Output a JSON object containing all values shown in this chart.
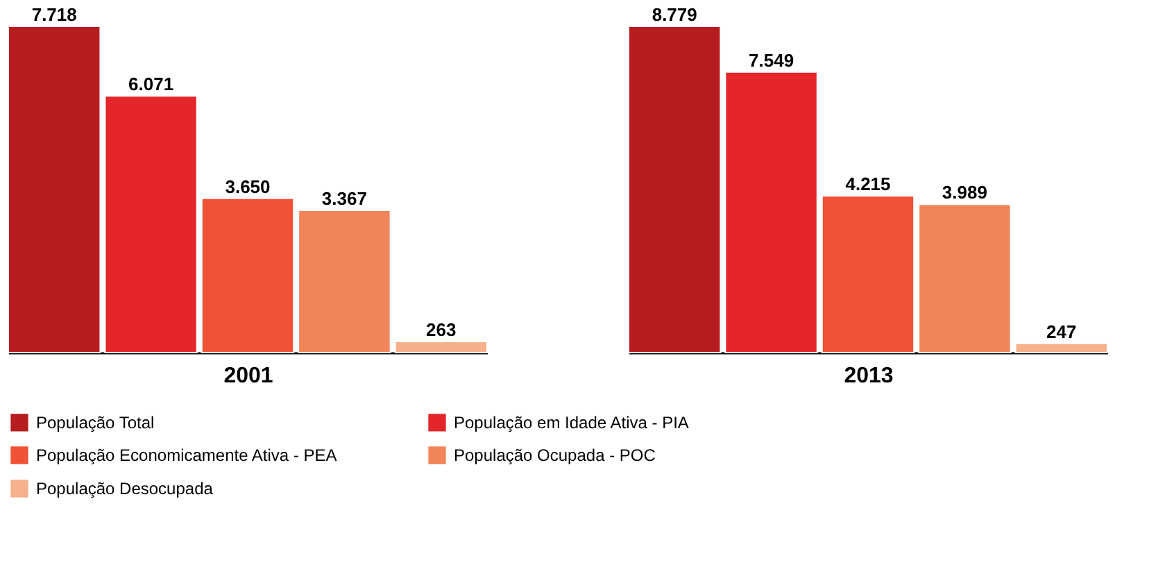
{
  "chart_data": [
    {
      "type": "bar",
      "xlabel": "2001",
      "categories": [
        null
      ],
      "legend": "bottom",
      "series": [
        {
          "name": "População Total",
          "color": "#b51d1f",
          "values": [
            7718
          ],
          "value_labels": [
            "7.718"
          ]
        },
        {
          "name": "População em Idade Ativa - PIA",
          "color": "#e4252a",
          "values": [
            6071
          ],
          "value_labels": [
            "6.071"
          ]
        },
        {
          "name": "População Economicamente Ativa - PEA",
          "color": "#ef5236",
          "values": [
            3650
          ],
          "value_labels": [
            "3.650"
          ]
        },
        {
          "name": "População Ocupada - POC",
          "color": "#f2845a",
          "values": [
            3367
          ],
          "value_labels": [
            "3.367"
          ]
        },
        {
          "name": "População Desocupada",
          "color": "#f6b08c",
          "values": [
            263
          ],
          "value_labels": [
            "263"
          ]
        }
      ]
    },
    {
      "type": "bar",
      "xlabel": "2013",
      "categories": [
        null
      ],
      "legend": "bottom",
      "series": [
        {
          "name": "População Total",
          "color": "#b51d1f",
          "values": [
            8779
          ],
          "value_labels": [
            "8.779"
          ]
        },
        {
          "name": "População em Idade Ativa - PIA",
          "color": "#e4252a",
          "values": [
            7549
          ],
          "value_labels": [
            "7.549"
          ]
        },
        {
          "name": "População Economicamente Ativa - PEA",
          "color": "#ef5236",
          "values": [
            4215
          ],
          "value_labels": [
            "4.215"
          ]
        },
        {
          "name": "População Ocupada - POC",
          "color": "#f2845a",
          "values": [
            3989
          ],
          "value_labels": [
            "3.989"
          ]
        },
        {
          "name": "População Desocupada",
          "color": "#f6b08c",
          "values": [
            247
          ],
          "value_labels": [
            "247"
          ]
        }
      ]
    }
  ]
}
